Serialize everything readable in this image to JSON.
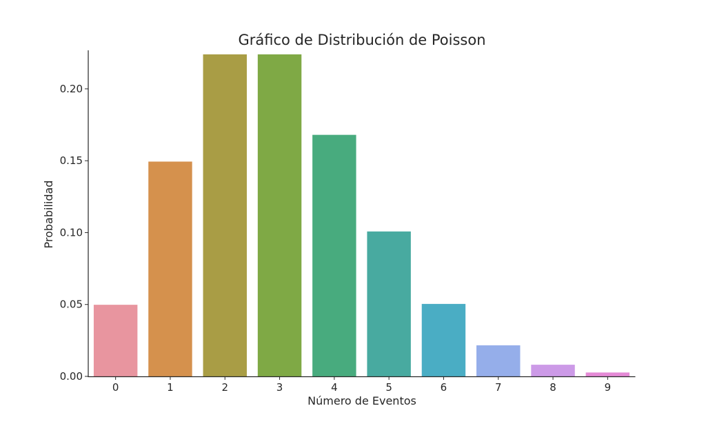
{
  "chart_data": {
    "type": "bar",
    "title": "Gráfico de Distribución de Poisson",
    "xlabel": "Número de Eventos",
    "ylabel": "Probabilidad",
    "categories": [
      "0",
      "1",
      "2",
      "3",
      "4",
      "5",
      "6",
      "7",
      "8",
      "9"
    ],
    "values": [
      0.0498,
      0.1494,
      0.224,
      0.224,
      0.168,
      0.1008,
      0.0504,
      0.0216,
      0.0081,
      0.0027
    ],
    "colors": [
      "#e8959f",
      "#d5914d",
      "#a99d45",
      "#7fa945",
      "#48ab7e",
      "#48aaa0",
      "#4aadc4",
      "#95aeea",
      "#cc9ae7",
      "#e58ad6"
    ],
    "ylim": [
      0,
      0.2268
    ],
    "yticks": [
      0,
      0.05,
      0.1,
      0.15,
      0.2
    ],
    "ytick_labels": [
      "0.00",
      "0.05",
      "0.10",
      "0.15",
      "0.20"
    ],
    "grid": false,
    "legend": "none"
  }
}
